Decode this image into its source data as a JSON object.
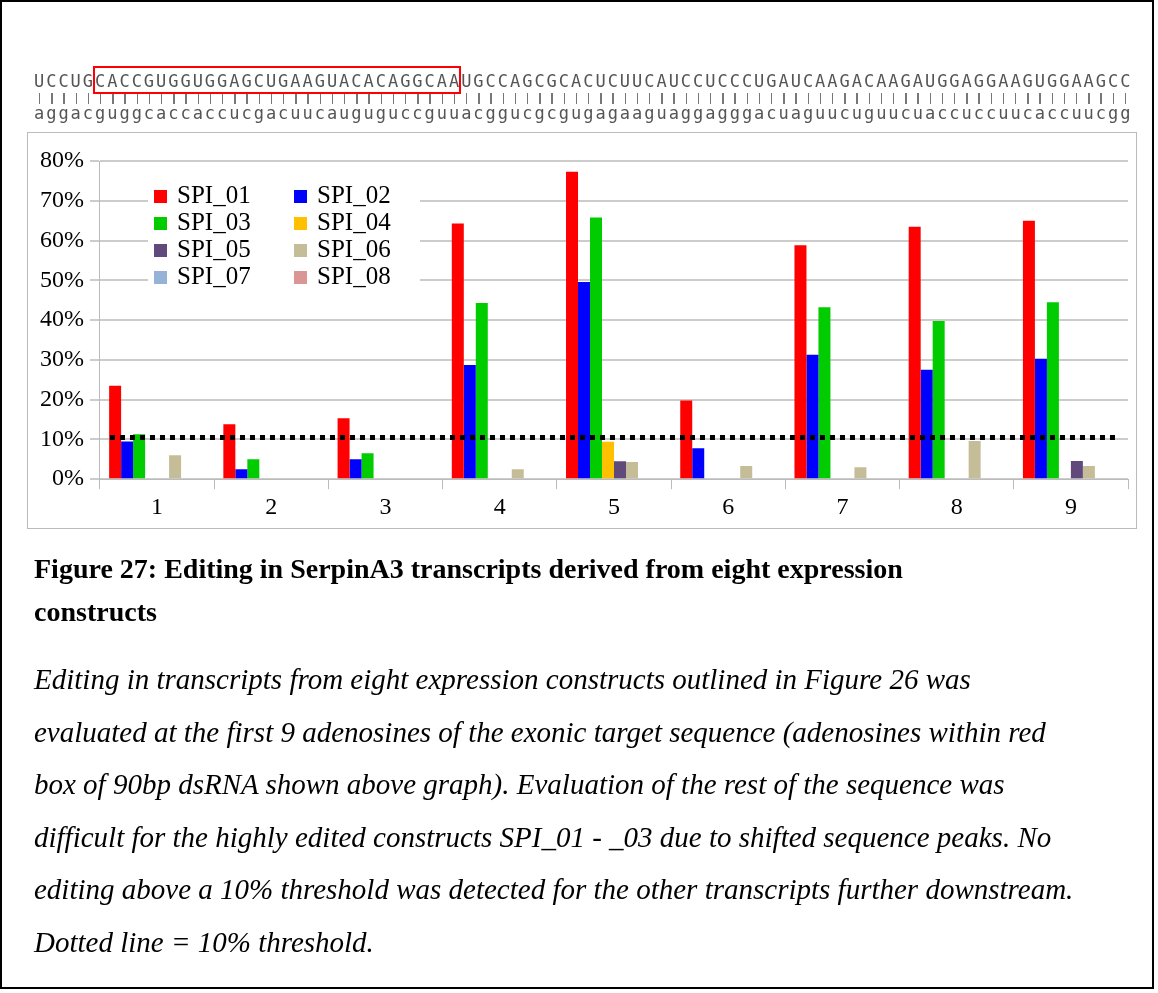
{
  "chart_data": {
    "type": "bar",
    "title": "Figure 27: Editing in SerpinA3 transcripts derived from eight expression constructs",
    "categories": [
      "1",
      "2",
      "3",
      "4",
      "5",
      "6",
      "7",
      "8",
      "9"
    ],
    "series": [
      {
        "name": "SPI_01",
        "color": "#ff0000",
        "values": [
          23.5,
          13.8,
          15.3,
          64.3,
          77.3,
          19.8,
          58.8,
          63.5,
          65
        ]
      },
      {
        "name": "SPI_02",
        "color": "#0000ff",
        "values": [
          9.5,
          2.5,
          5,
          28.7,
          49.6,
          7.8,
          31.3,
          27.5,
          30.3
        ]
      },
      {
        "name": "SPI_03",
        "color": "#00cc00",
        "values": [
          11.3,
          5,
          6.5,
          44.3,
          65.8,
          0,
          43.2,
          39.8,
          44.5
        ]
      },
      {
        "name": "SPI_04",
        "color": "#ffc000",
        "values": [
          0,
          0,
          0,
          0,
          9.4,
          0,
          0,
          0,
          0
        ]
      },
      {
        "name": "SPI_05",
        "color": "#604a7b",
        "values": [
          0,
          0,
          0,
          0,
          4.5,
          0,
          0,
          0,
          4.6
        ]
      },
      {
        "name": "SPI_06",
        "color": "#c4bd97",
        "values": [
          6,
          0,
          0,
          2.5,
          4.3,
          3.3,
          3,
          9.6,
          3.3
        ]
      },
      {
        "name": "SPI_07",
        "color": "#95b3d7",
        "values": [
          0,
          0,
          0,
          0,
          0,
          0,
          0,
          0,
          0
        ]
      },
      {
        "name": "SPI_08",
        "color": "#d99694",
        "values": [
          0,
          0,
          0,
          0,
          0,
          0,
          0,
          0,
          0
        ]
      }
    ],
    "ylim": [
      0,
      80
    ],
    "yticks": [
      {
        "value": 0,
        "label": "0%"
      },
      {
        "value": 10,
        "label": "10%"
      },
      {
        "value": 20,
        "label": "20%"
      },
      {
        "value": 30,
        "label": "30%"
      },
      {
        "value": 40,
        "label": "40%"
      },
      {
        "value": 50,
        "label": "50%"
      },
      {
        "value": 60,
        "label": "60%"
      },
      {
        "value": 70,
        "label": "70%"
      },
      {
        "value": 80,
        "label": "80%"
      }
    ],
    "grid": "y",
    "legend": "top left",
    "ref_lines": [
      {
        "axis": "y",
        "value": 10.5,
        "color": "#000000",
        "line_style": "dotted"
      }
    ],
    "annotations": [
      "UCCUGCACCGUGGUGGAGCUGAAGUACACAGGCAAUGCCAGCGCACUCUUCAUCCUCCCUGAUCAAGACAAGAUGGAGGAAGUGGAAGCC",
      "aggacguggcaccaccucgacuucauguguccguuacggucgcgugagaaguaggagggacuaguucuguucuaccuccuucaccuucgg",
      "Editing in transcripts from eight expression constructs outlined in Figure 26 was evaluated at the first 9 adenosines of the exonic target sequence (adenosines within red box of 90bp dsRNA shown above graph). Evaluation of the rest of the sequence was difficult for the highly edited constructs SPI_01 - _03 due to shifted sequence peaks. No editing above a 10% threshold was detected for the other transcripts further downstream. Dotted line = 10% threshold."
    ]
  }
}
